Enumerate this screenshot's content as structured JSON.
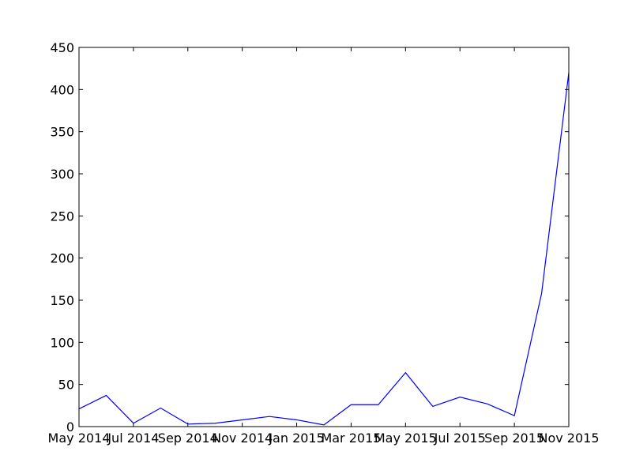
{
  "chart_data": {
    "type": "line",
    "title": "",
    "xlabel": "",
    "ylabel": "",
    "x_tick_labels": [
      "May 2014",
      "Jul 2014",
      "Sep 2014",
      "Nov 2014",
      "Jan 2015",
      "Mar 2015",
      "May 2015",
      "Jul 2015",
      "Sep 2015",
      "Nov 2015"
    ],
    "y_ticks": [
      0,
      50,
      100,
      150,
      200,
      250,
      300,
      350,
      400,
      450
    ],
    "ylim": [
      0,
      450
    ],
    "xlim": [
      "2014-05",
      "2015-11"
    ],
    "grid": false,
    "legend": false,
    "series": [
      {
        "color": "#0000ff",
        "x": [
          "2014-05",
          "2014-06",
          "2014-07",
          "2014-08",
          "2014-09",
          "2014-10",
          "2014-11",
          "2014-12",
          "2015-01",
          "2015-02",
          "2015-03",
          "2015-04",
          "2015-05",
          "2015-06",
          "2015-07",
          "2015-08",
          "2015-09",
          "2015-10",
          "2015-11"
        ],
        "values": [
          21,
          37,
          4,
          22,
          3,
          4,
          8,
          12,
          8,
          2,
          26,
          26,
          64,
          24,
          35,
          27,
          13,
          158,
          420
        ]
      }
    ]
  }
}
